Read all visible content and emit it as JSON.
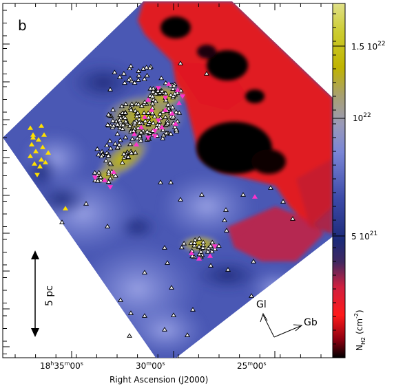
{
  "chart_data": {
    "type": "heatmap",
    "panel_label": "b",
    "xlabel": "Right Ascension (J2000)",
    "x_ticks": [
      {
        "label": "18h35m00s",
        "h": "18",
        "m": "35",
        "s": "00"
      },
      {
        "label": "30m00s",
        "m": "30",
        "s": "00"
      },
      {
        "label": "25m00s",
        "m": "25",
        "s": "00"
      }
    ],
    "colorbar": {
      "label_main": "N",
      "label_sub": "H2",
      "label_unit": "(cm",
      "label_exp": "-2",
      "label_close": ")",
      "ticks": [
        {
          "label": "1.5 10",
          "exp": "22",
          "value": 1.5e+22
        },
        {
          "label": "10",
          "exp": "22",
          "value": 1e+22
        },
        {
          "label": "5 10",
          "exp": "21",
          "value": 5e+21
        }
      ],
      "colors": [
        "#000000",
        "#d0001c",
        "#ff3030",
        "#a02850",
        "#1c2a78",
        "#3c4aa8",
        "#7a86d6",
        "#9a9ab8",
        "#b0a860",
        "#c8c000",
        "#d8d868"
      ]
    },
    "scale_bar": {
      "label": "5 pc"
    },
    "orientation": {
      "gl_label": "Gl",
      "gb_label": "Gb"
    },
    "markers": {
      "triangle_black_color": "#000000",
      "triangle_white_color": "#ffffff",
      "magenta_color": "#ff33cc",
      "yellow_color": "#ffe000"
    }
  }
}
